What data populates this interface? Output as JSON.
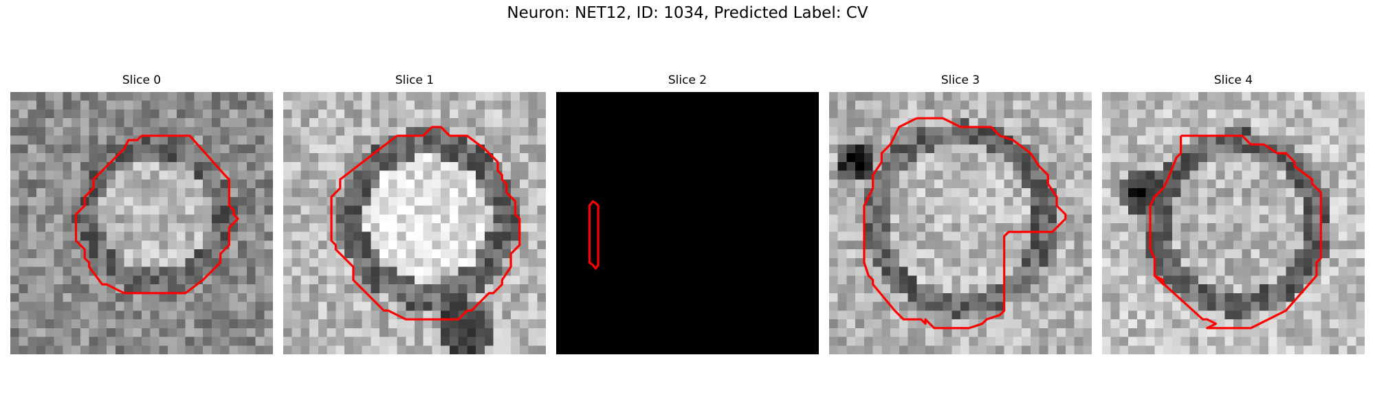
{
  "figure": {
    "title": "Neuron: NET12, ID: 1034, Predicted Label: CV",
    "contour_color": "#ff0000"
  },
  "slices": [
    {
      "label": "Slice 0",
      "variant": "grayscale"
    },
    {
      "label": "Slice 1",
      "variant": "grayscale"
    },
    {
      "label": "Slice 2",
      "variant": "black"
    },
    {
      "label": "Slice 3",
      "variant": "grayscale"
    },
    {
      "label": "Slice 4",
      "variant": "grayscale"
    }
  ]
}
